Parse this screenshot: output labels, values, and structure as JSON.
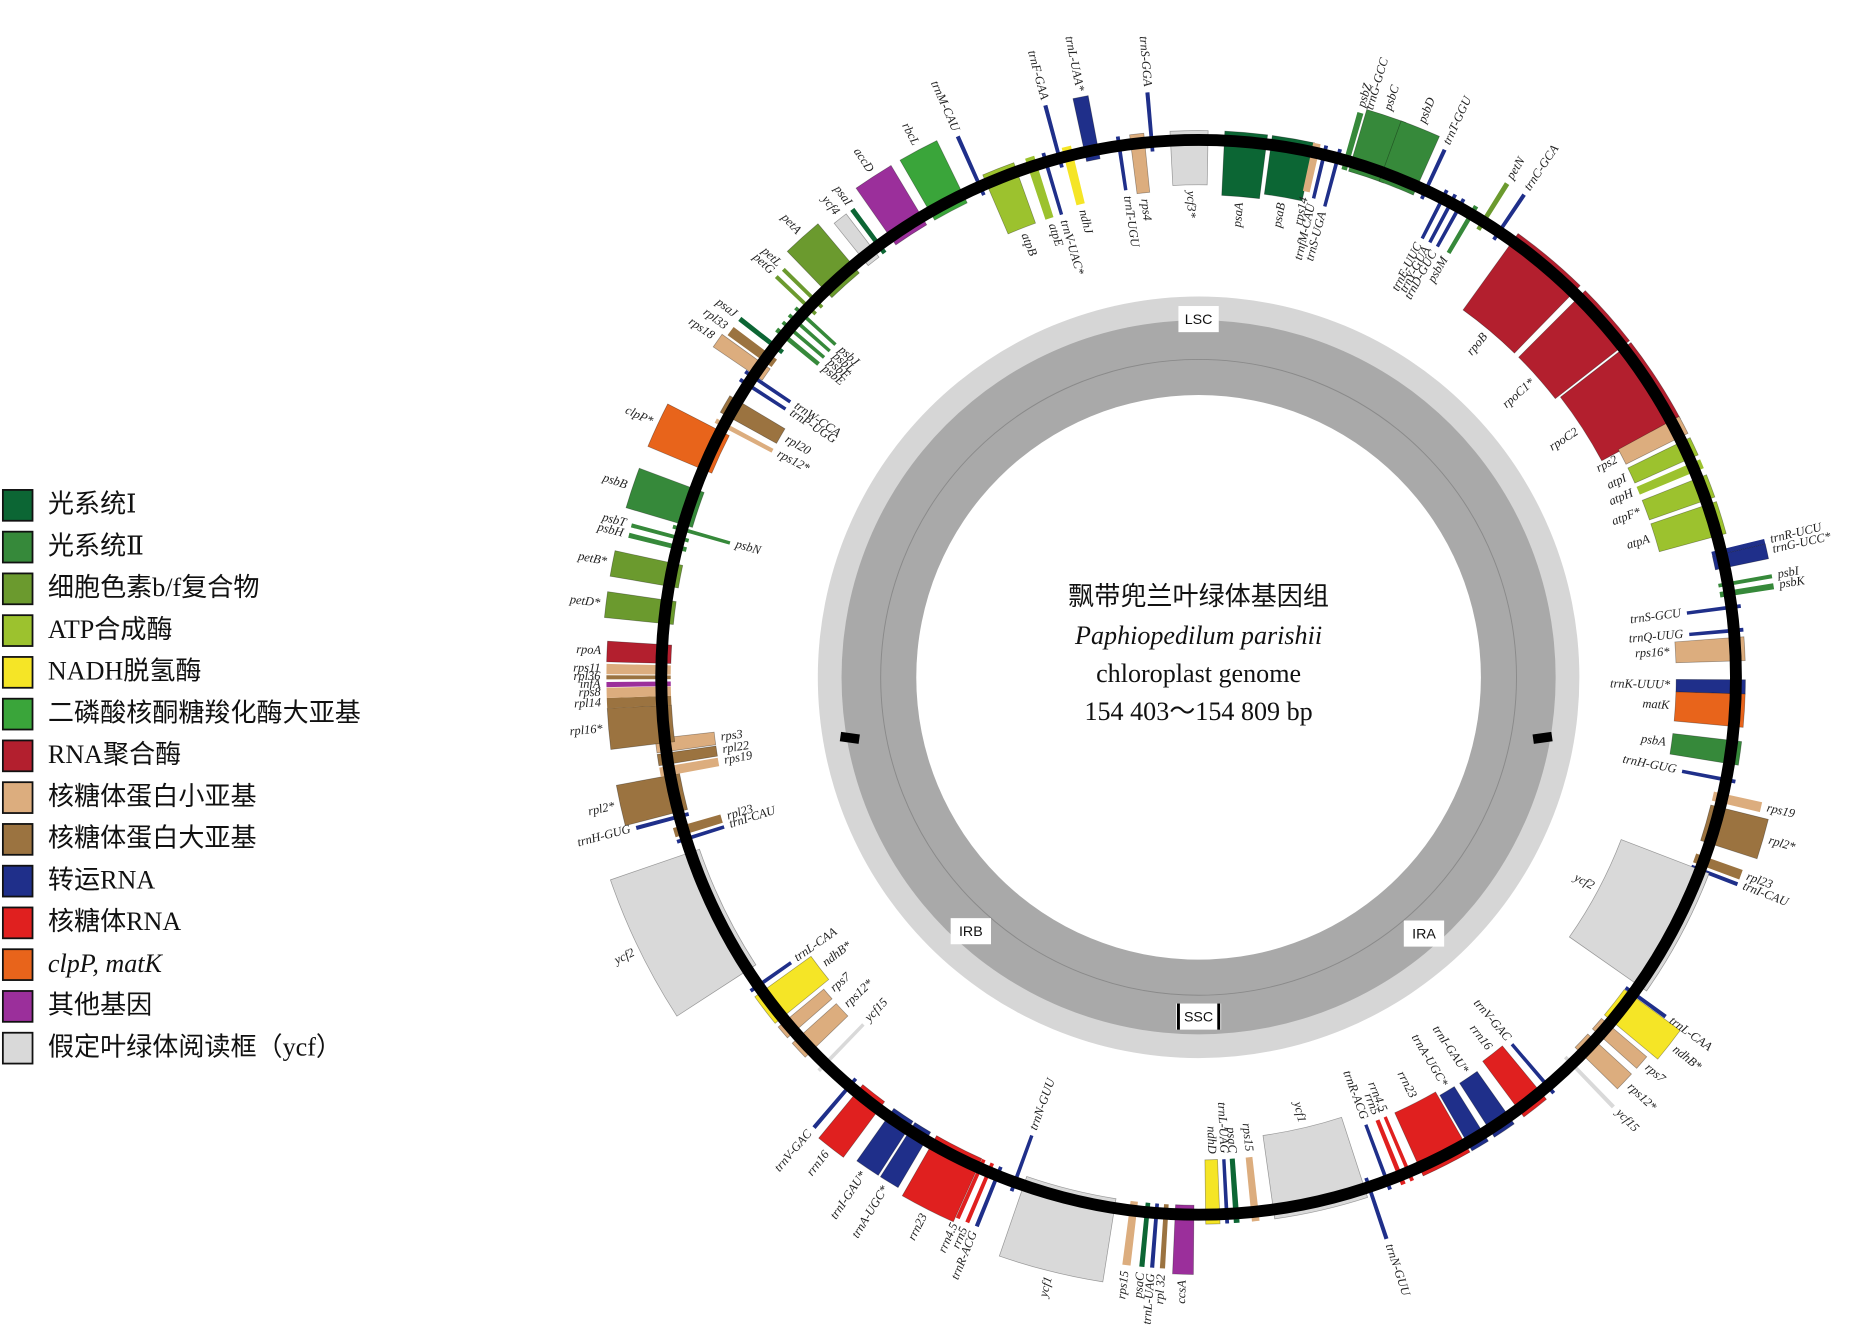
{
  "legend": [
    {
      "label": "光系统Ⅰ",
      "color": "#0c6634"
    },
    {
      "label": "光系统Ⅱ",
      "color": "#36893a"
    },
    {
      "label": "细胞色素b/f复合物",
      "color": "#6b9a2e"
    },
    {
      "label": "ATP合成酶",
      "color": "#9cc22e"
    },
    {
      "label": "NADH脱氢酶",
      "color": "#f5e526"
    },
    {
      "label": "二磷酸核酮糖羧化酶大亚基",
      "color": "#3aa53a"
    },
    {
      "label": "RNA聚合酶",
      "color": "#b31f2e"
    },
    {
      "label": "核糖体蛋白小亚基",
      "color": "#dcad7e"
    },
    {
      "label": "核糖体蛋白大亚基",
      "color": "#9b7340"
    },
    {
      "label": "转运RNA",
      "color": "#1f2f8a"
    },
    {
      "label": "核糖体RNA",
      "color": "#e0201f"
    },
    {
      "label": "clpP, matK",
      "color": "#e8641b"
    },
    {
      "label": "其他基因",
      "color": "#9b2f9b"
    },
    {
      "label": "假定叶绿体阅读框（ycf）",
      "color": "#d9d9d9"
    }
  ],
  "center": {
    "title": "飘带兜兰叶绿体基因组",
    "species": "Paphiopedilum parishii",
    "subtitle": "chloroplast genome",
    "size": "154 403～154 809 bp"
  },
  "regions": [
    "LSC",
    "IRB",
    "IRA",
    "SSC"
  ],
  "genes": [
    "psaA",
    "psaB",
    "rps14",
    "trnfM-CAU",
    "trnS-UGA",
    "psbZ",
    "trnG-GCC",
    "psbC",
    "psbD",
    "trnT-GGU",
    "trnE-UUC",
    "trnY-GUA",
    "trnD-GUC",
    "psbM",
    "petN",
    "trnC-GCA",
    "rpoB",
    "rpoC1*",
    "rpoC2",
    "rps2",
    "atpI",
    "atpH",
    "atpF*",
    "atpA",
    "trnR-UCU",
    "trnG-UCC*",
    "psbI",
    "psbK",
    "trnS-GCU",
    "trnQ-UUG",
    "rps16*",
    "trnK-UUU*",
    "matK",
    "psbA",
    "trnH-GUG",
    "rps19",
    "rpl2*",
    "rpl23",
    "trnI-CAU",
    "ycf2",
    "trnL-CAA",
    "ndhB*",
    "rps7",
    "rps12*",
    "ycf15",
    "trnV-GAC",
    "rrn16",
    "trnI-GAU*",
    "trnA-UGC*",
    "rrn23",
    "rrn4.5",
    "rrn5",
    "trnR-ACG",
    "trnN-GUU",
    "ycf1",
    "rps15",
    "psaC",
    "trnL-UAG",
    "ndhD",
    "ccsA",
    "rpl 32",
    "trnL-UAG",
    "psaC",
    "rps15",
    "ycf1",
    "trnN-GUU",
    "trnR-ACG",
    "rrn5",
    "rrn4.5",
    "rrn23",
    "trnA-UGC*",
    "trnI-GAU*",
    "rrn16",
    "trnV-GAC",
    "ycf15",
    "rps12*",
    "rps7",
    "ndhB*",
    "trnL-CAA",
    "ycf2",
    "trnI-CAU",
    "rpl23",
    "trnH-GUG",
    "rpl2*",
    "rps19",
    "rpl22",
    "rps3",
    "rpl16*",
    "rpl14",
    "rps8",
    "infA",
    "rpl36",
    "rps11",
    "rpoA",
    "petD*",
    "petB*",
    "psbH",
    "psbT",
    "psbN",
    "psbB",
    "clpP*",
    "rps12*",
    "rpl20",
    "trnP-UGG",
    "trnW-CCA",
    "rps18",
    "rpl33",
    "psaJ",
    "psbE",
    "psbF",
    "psbL",
    "psbJ",
    "petG",
    "petL",
    "petA",
    "ycf4",
    "psaI",
    "accD",
    "rbcL",
    "trnM-CAU",
    "atpB",
    "atpE",
    "trnV-UAC*",
    "trnF-GAA",
    "ndhJ",
    "trnL-UAA*",
    "trnT-UGU",
    "rps4",
    "trnS-GGA",
    "ycf3*"
  ]
}
